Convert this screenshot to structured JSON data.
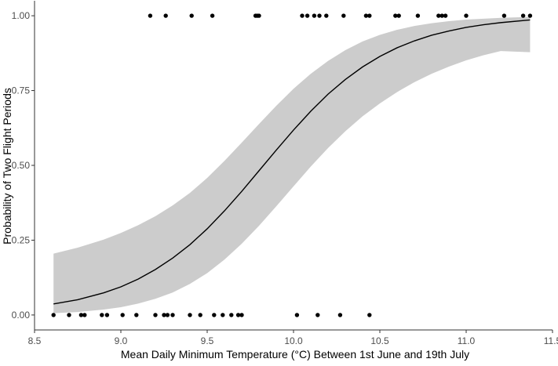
{
  "chart_data": {
    "type": "scatter",
    "title": "",
    "xlabel": "Mean Daily Minimum Temperature (°C) Between 1st June and 19th July",
    "ylabel": "Probability of Two Flight Periods",
    "xlim": [
      8.5,
      11.5
    ],
    "ylim": [
      -0.05,
      1.05
    ],
    "grid": false,
    "legend": "none",
    "x_ticks": [
      8.5,
      9.0,
      9.5,
      10.0,
      10.5,
      11.0,
      11.5
    ],
    "x_tick_labels": [
      "8.5",
      "9.0",
      "9.5",
      "10.0",
      "10.5",
      "11.0",
      "11.5"
    ],
    "y_ticks": [
      0,
      0.25,
      0.5,
      0.75,
      1.0
    ],
    "y_tick_labels": [
      "0.00",
      "0.25",
      "0.50",
      "0.75",
      "1.00"
    ],
    "fitted_curve": {
      "type": "logistic",
      "x": [
        8.61,
        8.75,
        8.9,
        9.0,
        9.1,
        9.2,
        9.3,
        9.4,
        9.5,
        9.6,
        9.7,
        9.8,
        9.9,
        10.0,
        10.1,
        10.2,
        10.3,
        10.4,
        10.5,
        10.6,
        10.7,
        10.8,
        10.9,
        11.0,
        11.1,
        11.2,
        11.37
      ],
      "y": [
        0.037,
        0.051,
        0.074,
        0.094,
        0.12,
        0.152,
        0.19,
        0.235,
        0.288,
        0.348,
        0.413,
        0.482,
        0.551,
        0.618,
        0.681,
        0.738,
        0.787,
        0.829,
        0.864,
        0.893,
        0.916,
        0.935,
        0.949,
        0.961,
        0.97,
        0.977,
        0.986
      ]
    },
    "confidence_band": {
      "x": [
        8.61,
        8.75,
        8.9,
        9.0,
        9.1,
        9.2,
        9.3,
        9.4,
        9.5,
        9.6,
        9.7,
        9.8,
        9.9,
        10.0,
        10.1,
        10.2,
        10.3,
        10.4,
        10.5,
        10.6,
        10.7,
        10.8,
        10.9,
        11.0,
        11.1,
        11.2,
        11.37
      ],
      "lower": [
        0.006,
        0.01,
        0.018,
        0.026,
        0.038,
        0.054,
        0.075,
        0.104,
        0.14,
        0.185,
        0.238,
        0.298,
        0.363,
        0.43,
        0.496,
        0.558,
        0.614,
        0.664,
        0.707,
        0.745,
        0.778,
        0.806,
        0.83,
        0.851,
        0.868,
        0.882,
        0.878
      ],
      "upper": [
        0.205,
        0.225,
        0.252,
        0.274,
        0.3,
        0.33,
        0.366,
        0.408,
        0.458,
        0.515,
        0.576,
        0.638,
        0.699,
        0.756,
        0.806,
        0.849,
        0.885,
        0.914,
        0.936,
        0.953,
        0.966,
        0.975,
        0.982,
        0.987,
        0.99,
        0.993,
        0.996
      ]
    },
    "points": {
      "y0_x": [
        8.61,
        8.7,
        8.77,
        8.79,
        8.89,
        8.92,
        9.01,
        9.09,
        9.2,
        9.25,
        9.27,
        9.3,
        9.4,
        9.46,
        9.54,
        9.59,
        9.64,
        9.68,
        9.7,
        10.02,
        10.14,
        10.27,
        10.44
      ],
      "y1_x": [
        9.17,
        9.26,
        9.41,
        9.53,
        9.78,
        9.79,
        9.8,
        10.05,
        10.08,
        10.12,
        10.15,
        10.19,
        10.29,
        10.42,
        10.44,
        10.59,
        10.61,
        10.72,
        10.84,
        10.86,
        10.88,
        11.0,
        11.22,
        11.33,
        11.37
      ]
    },
    "colors": {
      "band": "#cccccc",
      "line": "#000000",
      "points": "#000000",
      "axis": "#333333",
      "tick_label": "#4d4d4d",
      "axis_title": "#000000"
    }
  }
}
